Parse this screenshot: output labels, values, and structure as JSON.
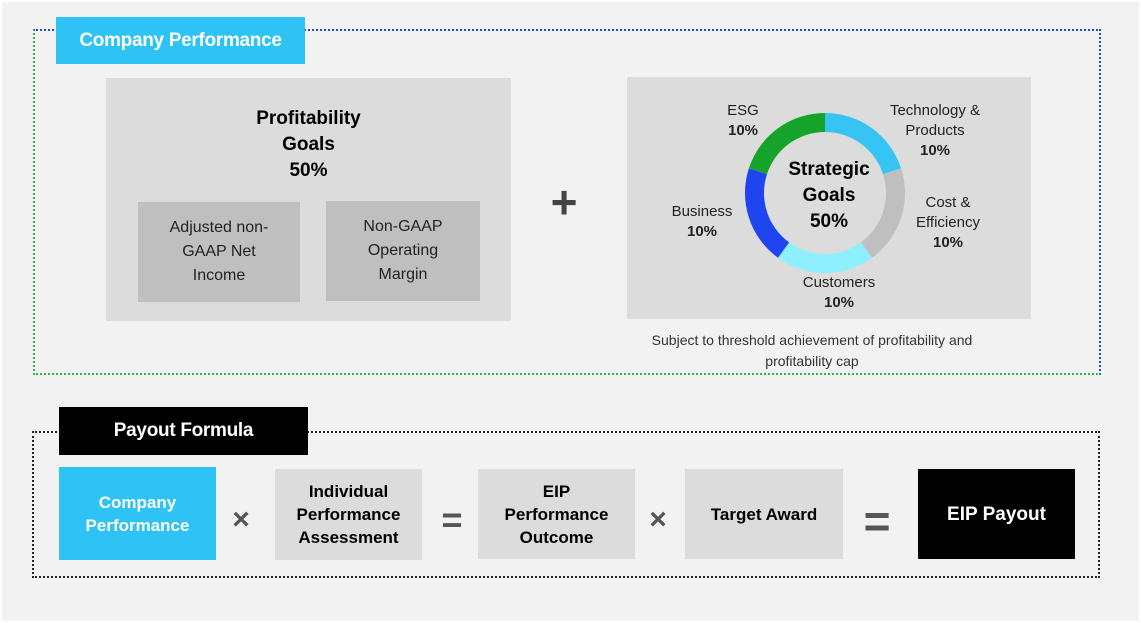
{
  "company_performance": {
    "label": "Company Performance",
    "profitability": {
      "title_line1": "Profitability",
      "title_line2": "Goals",
      "title_pct": "50%",
      "metric1": "Adjusted non-GAAP Net Income",
      "metric2": "Non-GAAP Operating Margin"
    },
    "plus": "+",
    "strategic": {
      "center_line1": "Strategic",
      "center_line2": "Goals",
      "center_pct": "50%",
      "segments": [
        {
          "name": "Technology &",
          "name2": "Products",
          "pct": "10%",
          "value": 10,
          "color": "#35c4f4"
        },
        {
          "name": "Cost &",
          "name2": "Efficiency",
          "pct": "10%",
          "value": 10,
          "color": "#bfbfbf"
        },
        {
          "name": "Customers",
          "name2": "",
          "pct": "10%",
          "value": 10,
          "color": "#8eefff"
        },
        {
          "name": "Business",
          "name2": "",
          "pct": "10%",
          "value": 10,
          "color": "#1f45f0"
        },
        {
          "name": "ESG",
          "name2": "",
          "pct": "10%",
          "value": 10,
          "color": "#15a32a"
        }
      ]
    },
    "note": "Subject to threshold achievement of profitability and profitability cap"
  },
  "payout_formula": {
    "label": "Payout Formula",
    "company_performance": "Company Performance",
    "times1": "×",
    "individual": "Individual Performance Assessment",
    "equals1": "=",
    "eip_outcome": "EIP Performance Outcome",
    "times2": "×",
    "target_award": "Target Award",
    "equals2": "=",
    "eip_payout": "EIP Payout"
  },
  "colors": {
    "accent_blue": "#2ec3f4",
    "box_grey": "#dcdcdc",
    "sub_grey": "#bfbfbf",
    "black": "#000000"
  }
}
